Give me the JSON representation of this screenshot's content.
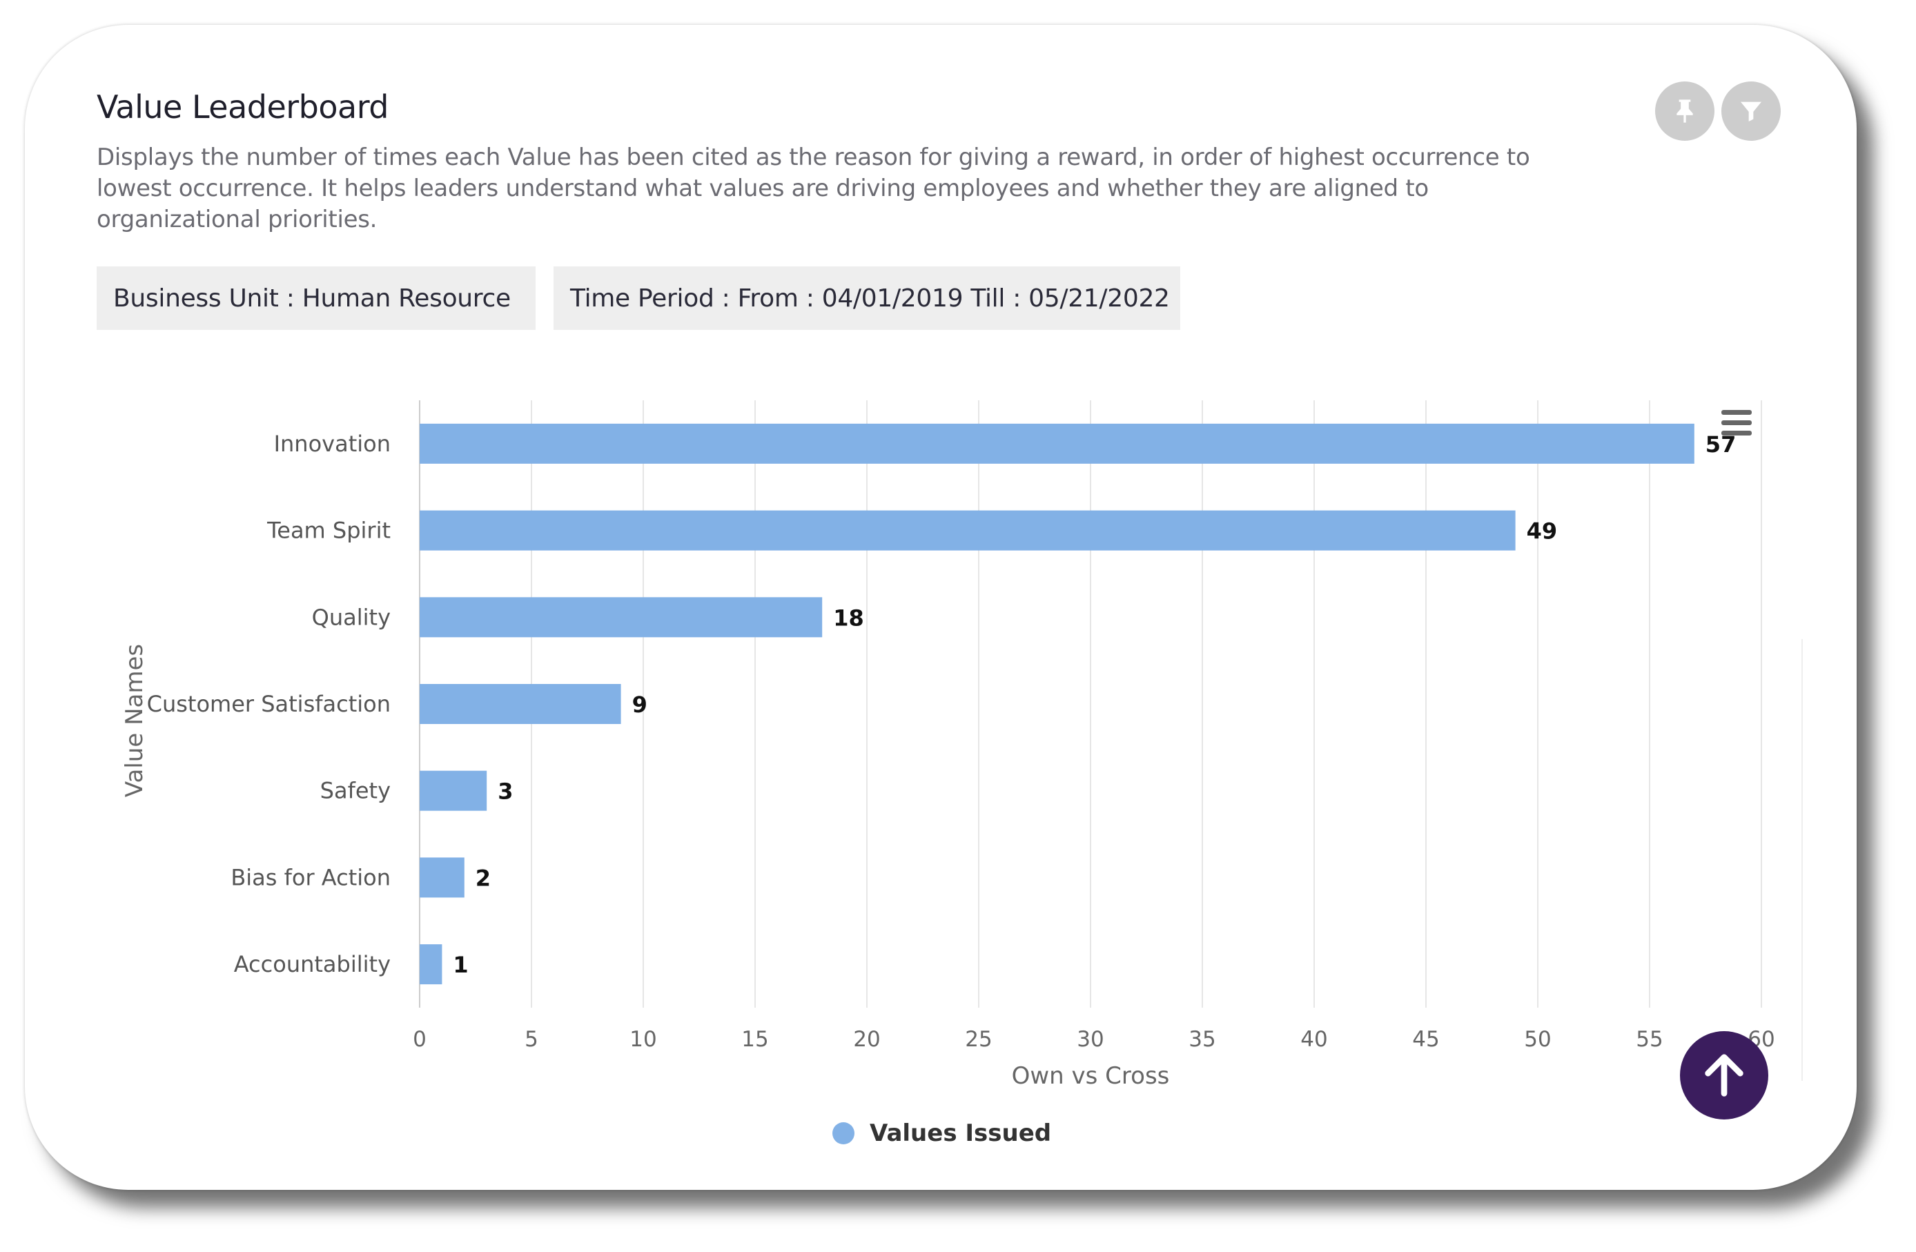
{
  "panel": {
    "title": "Value Leaderboard",
    "description": "Displays the number of times each Value has been cited as the reason for giving a reward, in order of highest occurrence to lowest occurrence. It helps leaders understand what values are driving employees and whether they are aligned to organizational priorities.",
    "filters": {
      "business_unit": "Business Unit : Human Resource",
      "time_period": "Time Period : From : 04/01/2019 Till : 05/21/2022"
    },
    "icons": {
      "pin": "pin-icon",
      "filter": "filter-icon",
      "chart_menu": "hamburger-menu-icon",
      "scroll_top": "arrow-up-icon"
    }
  },
  "chart_data": {
    "type": "bar",
    "orientation": "horizontal",
    "categories": [
      "Innovation",
      "Team Spirit",
      "Quality",
      "Customer Satisfaction",
      "Safety",
      "Bias for Action",
      "Accountability"
    ],
    "series": [
      {
        "name": "Values Issued",
        "values": [
          57,
          49,
          18,
          9,
          3,
          2,
          1
        ],
        "color": "#82b1e6"
      }
    ],
    "xlabel": "Own vs Cross",
    "ylabel": "Value Names",
    "xlim": [
      0,
      60
    ],
    "x_ticks": [
      0,
      5,
      10,
      15,
      20,
      25,
      30,
      35,
      40,
      45,
      50,
      55,
      60
    ],
    "grid": true,
    "legend": "bottom-center",
    "data_labels": true
  }
}
